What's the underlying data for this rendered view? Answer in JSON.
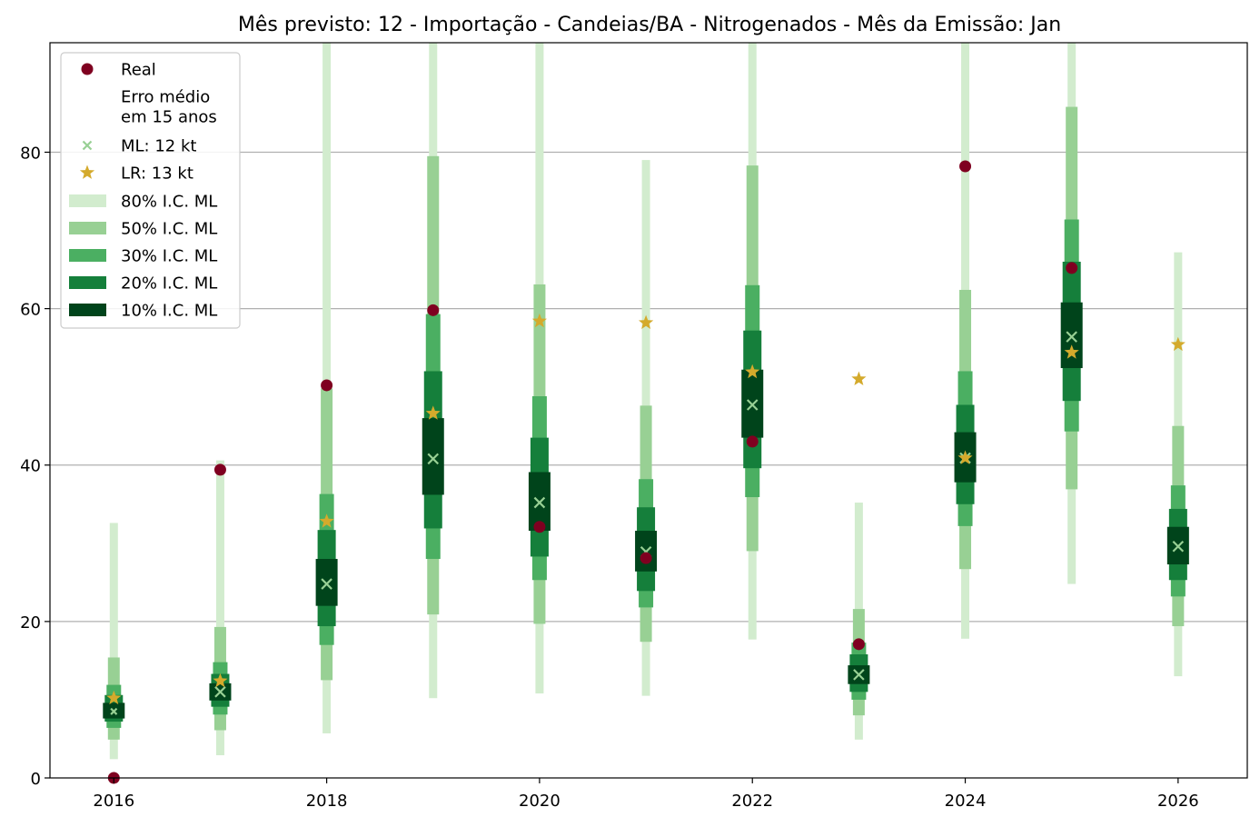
{
  "chart_data": {
    "type": "interval-forecast",
    "title": "Mês previsto: 12 - Importação - Candeias/BA - Nitrogenados - Mês da Emissão: Jan",
    "xlabel": "",
    "ylabel": "",
    "xlim": [
      2015.4,
      2026.65
    ],
    "ylim": [
      0,
      94
    ],
    "x_ticks": [
      2016,
      2018,
      2020,
      2022,
      2024,
      2026
    ],
    "y_ticks": [
      0,
      20,
      40,
      60,
      80
    ],
    "grid": "horizontal",
    "legend_position": "top-left",
    "colors": {
      "real": "#7f0020",
      "ml": "#98d094",
      "lr": "#d4aa2c",
      "ci80": "#d2ecce",
      "ci50": "#98d094",
      "ci30": "#4baf62",
      "ci20": "#157f3b",
      "ci10": "#00441b",
      "grid": "#b0b0b0"
    },
    "legend": [
      {
        "key": "real",
        "label": "Real"
      },
      {
        "key": "erro",
        "label": "Erro médio\nem 15 anos"
      },
      {
        "key": "ml",
        "label": "ML: 12 kt"
      },
      {
        "key": "lr",
        "label": "LR: 13 kt"
      },
      {
        "key": "ci80",
        "label": "80% I.C. ML"
      },
      {
        "key": "ci50",
        "label": "50% I.C. ML"
      },
      {
        "key": "ci30",
        "label": "30% I.C. ML"
      },
      {
        "key": "ci20",
        "label": "20% I.C. ML"
      },
      {
        "key": "ci10",
        "label": "10% I.C. ML"
      }
    ],
    "series": [
      {
        "year": 2016,
        "real": 0,
        "ml": 8.5,
        "lr": 10.2,
        "ci80": [
          2.4,
          32.6
        ],
        "ci50": [
          4.9,
          15.4
        ],
        "ci30": [
          6.4,
          11.9
        ],
        "ci20": [
          7.2,
          10.6
        ],
        "ci10": [
          7.6,
          9.6
        ]
      },
      {
        "year": 2017,
        "real": 39.4,
        "ml": 11.0,
        "lr": 12.4,
        "ci80": [
          2.9,
          40.6
        ],
        "ci50": [
          6.1,
          19.3
        ],
        "ci30": [
          8.1,
          14.8
        ],
        "ci20": [
          9.1,
          13.3
        ],
        "ci10": [
          9.9,
          12.1
        ]
      },
      {
        "year": 2018,
        "real": 50.2,
        "ml": 24.8,
        "lr": 32.8,
        "ci80": [
          5.7,
          94
        ],
        "ci50": [
          12.5,
          49.8
        ],
        "ci30": [
          17.0,
          36.3
        ],
        "ci20": [
          19.4,
          31.7
        ],
        "ci10": [
          22.0,
          28.0
        ]
      },
      {
        "year": 2019,
        "real": 59.8,
        "ml": 40.8,
        "lr": 46.6,
        "ci80": [
          10.2,
          94
        ],
        "ci50": [
          20.9,
          79.5
        ],
        "ci30": [
          28.0,
          59.3
        ],
        "ci20": [
          31.9,
          52.0
        ],
        "ci10": [
          36.2,
          46.0
        ]
      },
      {
        "year": 2020,
        "real": 32.1,
        "ml": 35.2,
        "lr": 58.4,
        "ci80": [
          10.8,
          94
        ],
        "ci50": [
          19.7,
          63.1
        ],
        "ci30": [
          25.3,
          48.8
        ],
        "ci20": [
          28.3,
          43.5
        ],
        "ci10": [
          31.6,
          39.1
        ]
      },
      {
        "year": 2021,
        "real": 28.1,
        "ml": 28.9,
        "lr": 58.2,
        "ci80": [
          10.5,
          79.0
        ],
        "ci50": [
          17.4,
          47.6
        ],
        "ci30": [
          21.8,
          38.2
        ],
        "ci20": [
          23.9,
          34.6
        ],
        "ci10": [
          26.4,
          31.6
        ]
      },
      {
        "year": 2022,
        "real": 43.0,
        "ml": 47.7,
        "lr": 51.9,
        "ci80": [
          17.7,
          94
        ],
        "ci50": [
          29.0,
          78.3
        ],
        "ci30": [
          35.9,
          63.0
        ],
        "ci20": [
          39.6,
          57.2
        ],
        "ci10": [
          43.5,
          52.2
        ]
      },
      {
        "year": 2023,
        "real": 17.1,
        "ml": 13.2,
        "lr": 51.0,
        "ci80": [
          4.9,
          35.2
        ],
        "ci50": [
          8.0,
          21.6
        ],
        "ci30": [
          10.0,
          17.3
        ],
        "ci20": [
          11.0,
          15.8
        ],
        "ci10": [
          12.0,
          14.4
        ]
      },
      {
        "year": 2024,
        "real": 78.2,
        "ml": 40.9,
        "lr": 40.9,
        "ci80": [
          17.8,
          94
        ],
        "ci50": [
          26.7,
          62.4
        ],
        "ci30": [
          32.2,
          52.0
        ],
        "ci20": [
          35.0,
          47.7
        ],
        "ci10": [
          37.8,
          44.2
        ]
      },
      {
        "year": 2025,
        "real": 65.2,
        "ml": 56.4,
        "lr": 54.4,
        "ci80": [
          24.8,
          94
        ],
        "ci50": [
          36.9,
          85.8
        ],
        "ci30": [
          44.3,
          71.4
        ],
        "ci20": [
          48.2,
          66.0
        ],
        "ci10": [
          52.4,
          60.8
        ]
      },
      {
        "year": 2026,
        "real": null,
        "ml": 29.6,
        "lr": 55.4,
        "ci80": [
          13.0,
          67.2
        ],
        "ci50": [
          19.4,
          45.0
        ],
        "ci30": [
          23.2,
          37.4
        ],
        "ci20": [
          25.3,
          34.4
        ],
        "ci10": [
          27.3,
          32.1
        ]
      }
    ]
  }
}
